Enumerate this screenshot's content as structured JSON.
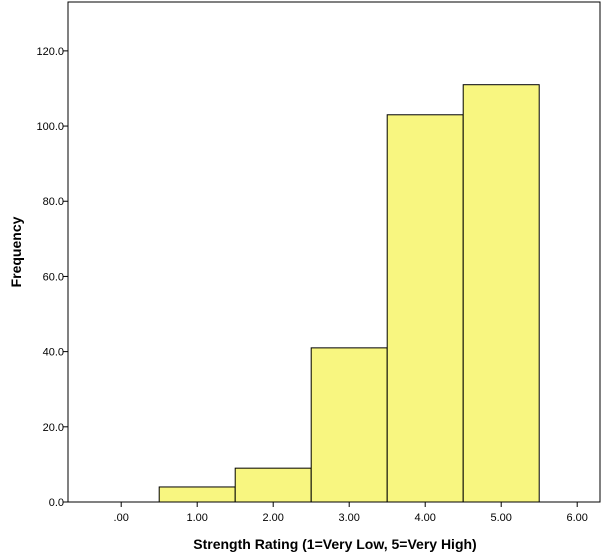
{
  "chart_data": {
    "type": "bar",
    "title": "",
    "xlabel": "Strength Rating (1=Very Low, 5=Very High)",
    "ylabel": "Frequency",
    "bins": [
      {
        "from": 0.5,
        "to": 1.5,
        "value": 4
      },
      {
        "from": 1.5,
        "to": 2.5,
        "value": 9
      },
      {
        "from": 2.5,
        "to": 3.5,
        "value": 41
      },
      {
        "from": 3.5,
        "to": 4.5,
        "value": 103
      },
      {
        "from": 4.5,
        "to": 5.5,
        "value": 111
      }
    ],
    "xlim": [
      -0.7,
      6.3
    ],
    "ylim": [
      0,
      133
    ],
    "xticks": [
      0,
      1,
      2,
      3,
      4,
      5,
      6
    ],
    "xtick_labels": [
      ".00",
      "1.00",
      "2.00",
      "3.00",
      "4.00",
      "5.00",
      "6.00"
    ],
    "yticks": [
      0,
      20,
      40,
      60,
      80,
      100,
      120
    ],
    "ytick_labels": [
      "0.0",
      "20.0",
      "40.0",
      "60.0",
      "80.0",
      "100.0",
      "120.0"
    ],
    "bar_color": "#f8f680",
    "grid": false
  }
}
